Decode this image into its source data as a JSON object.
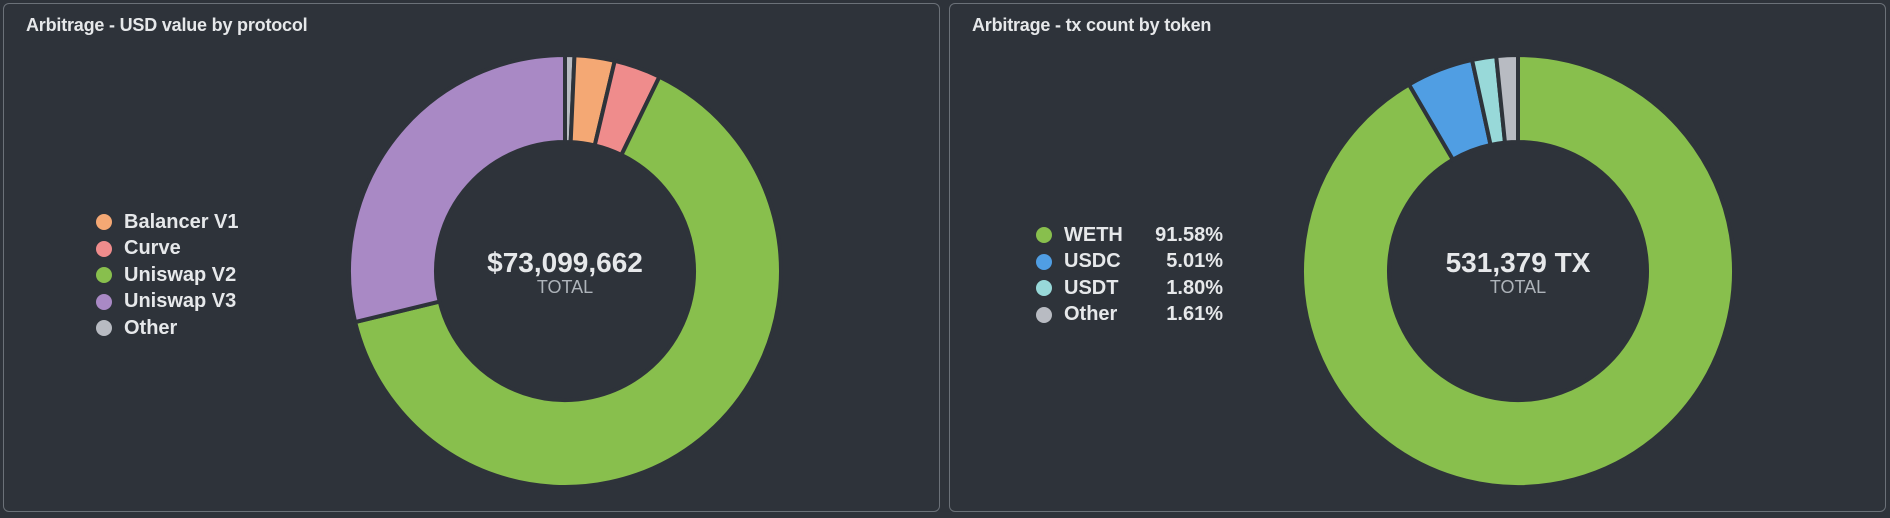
{
  "panels": [
    {
      "title": "Arbitrage - USD value by protocol",
      "center_value": "$73,099,662",
      "center_label": "TOTAL"
    },
    {
      "title": "Arbitrage - tx count by token",
      "center_value": "531,379 TX",
      "center_label": "TOTAL"
    }
  ],
  "chart_data": [
    {
      "type": "pie",
      "variant": "donut",
      "title": "Arbitrage - USD value by protocol",
      "total": "$73,099,662",
      "categories": [
        "Balancer V1",
        "Curve",
        "Uniswap V2",
        "Uniswap V3",
        "Other"
      ],
      "values": [
        3.0,
        3.5,
        64.0,
        28.8,
        0.7
      ],
      "colors": [
        "#f4a874",
        "#ef8c8c",
        "#88bf4d",
        "#a989c5",
        "#b8bbc2"
      ],
      "slice_order": [
        "Other",
        "Balancer V1",
        "Curve",
        "Uniswap V2",
        "Uniswap V3"
      ],
      "legend_position": "left"
    },
    {
      "type": "pie",
      "variant": "donut",
      "title": "Arbitrage - tx count by token",
      "total": "531,379 TX",
      "categories": [
        "WETH",
        "USDC",
        "USDT",
        "Other"
      ],
      "values": [
        91.58,
        5.01,
        1.8,
        1.61
      ],
      "value_labels": [
        "91.58%",
        "5.01%",
        "1.80%",
        "1.61%"
      ],
      "colors": [
        "#88bf4d",
        "#509ee3",
        "#98d9d9",
        "#b8bbc2"
      ],
      "legend_position": "left"
    }
  ]
}
